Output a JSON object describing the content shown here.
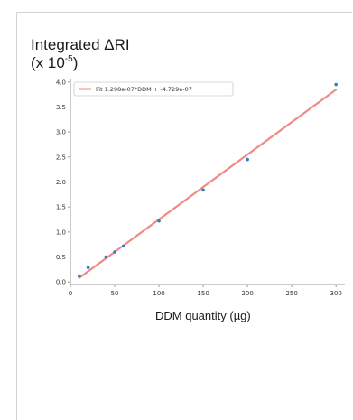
{
  "chart_data": {
    "type": "scatter",
    "ylabel_line1": "Integrated ΔRI",
    "ylabel_line2_prefix": "(x 10",
    "ylabel_line2_exp": "-5",
    "ylabel_line2_suffix": ")",
    "xlabel": "DDM quantity (µg)",
    "xlim": [
      0,
      310
    ],
    "ylim": [
      -0.05,
      4.05
    ],
    "x_ticks": [
      0,
      50,
      100,
      150,
      200,
      250,
      300
    ],
    "y_ticks": [
      0.0,
      0.5,
      1.0,
      1.5,
      2.0,
      2.5,
      3.0,
      3.5,
      4.0
    ],
    "y_tick_labels": [
      "0.0",
      "0.5",
      "1.0",
      "1.5",
      "2.0",
      "2.5",
      "3.0",
      "3.5",
      "4.0"
    ],
    "legend_position": "top-left",
    "grid": false,
    "points": {
      "x": [
        10,
        20,
        40,
        50,
        60,
        100,
        150,
        200,
        300
      ],
      "y": [
        0.12,
        0.29,
        0.5,
        0.6,
        0.72,
        1.22,
        1.84,
        2.45,
        3.95
      ]
    },
    "fit": {
      "label": "Fit 1.298e-07*DDM + -4.729e-07",
      "x_range": [
        10,
        300
      ],
      "slope": 0.01298,
      "intercept": -0.04729
    },
    "colors": {
      "points": "#2f7fc4",
      "fit_line": "#f08a84",
      "axis": "#999999"
    }
  }
}
